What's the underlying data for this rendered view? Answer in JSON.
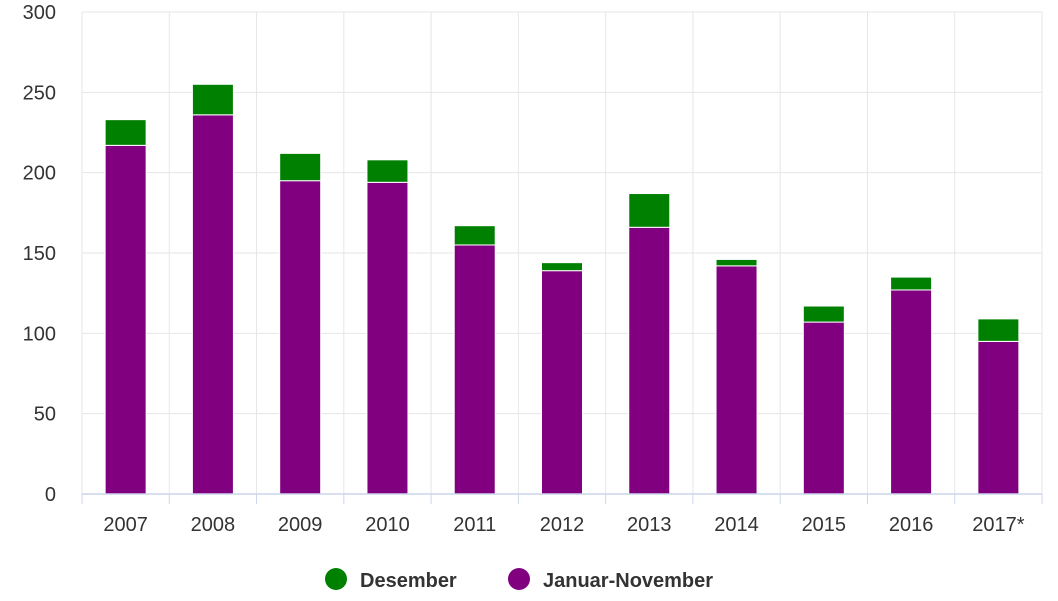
{
  "chart_data": {
    "type": "bar",
    "stacked": true,
    "categories": [
      "2007",
      "2008",
      "2009",
      "2010",
      "2011",
      "2012",
      "2013",
      "2014",
      "2015",
      "2016",
      "2017*"
    ],
    "series": [
      {
        "name": "Januar-November",
        "color": "#800080",
        "values": [
          217,
          236,
          195,
          194,
          155,
          139,
          166,
          142,
          107,
          127,
          95
        ]
      },
      {
        "name": "Desember",
        "color": "#008000",
        "values": [
          16,
          19,
          17,
          14,
          12,
          5,
          21,
          4,
          10,
          8,
          14
        ]
      }
    ],
    "yticks": [
      0,
      50,
      100,
      150,
      200,
      250,
      300
    ],
    "ylim": [
      0,
      300
    ],
    "grid": true,
    "legend_position": "bottom",
    "legend": [
      {
        "name": "Desember",
        "color": "#008000"
      },
      {
        "name": "Januar-November",
        "color": "#800080"
      }
    ]
  }
}
